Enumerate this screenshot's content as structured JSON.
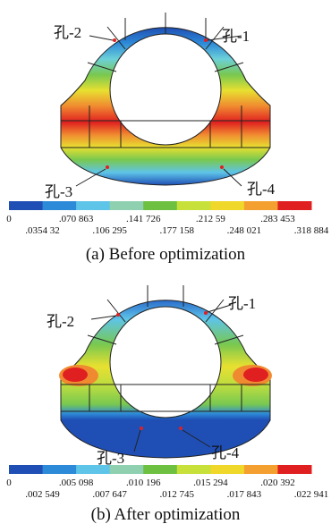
{
  "panels": [
    {
      "labels": [
        "孔-2",
        "孔-1",
        "孔-3",
        "孔-4"
      ],
      "legend": {
        "ticks_top": [
          "0",
          ".070 863",
          ".141 726",
          ".212 59",
          ".283 453"
        ],
        "ticks_bottom": [
          ".0354 32",
          ".106 295",
          ".177 158",
          ".248 021",
          ".318 884"
        ]
      },
      "caption": "(a) Before optimization"
    },
    {
      "labels": [
        "孔-2",
        "孔-1",
        "孔-3",
        "孔-4"
      ],
      "legend": {
        "ticks_top": [
          "0",
          ".005 098",
          ".010 196",
          ".015 294",
          ".020 392"
        ],
        "ticks_bottom": [
          ".002 549",
          ".007 647",
          ".012 745",
          ".017 843",
          ".022 941"
        ]
      },
      "caption": "(b) After optimization"
    }
  ]
}
